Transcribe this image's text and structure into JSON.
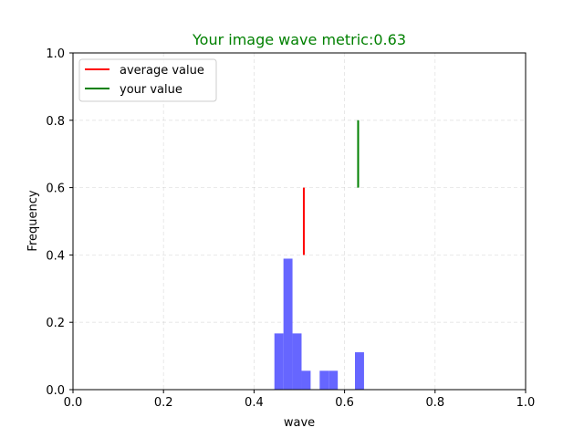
{
  "chart_data": {
    "type": "bar",
    "title": "Your image wave metric:0.63",
    "title_color": "#008000",
    "xlabel": "wave",
    "ylabel": "Frequency",
    "xlim": [
      0.0,
      1.0
    ],
    "ylim": [
      0.0,
      1.0
    ],
    "x_ticks": [
      0.0,
      0.2,
      0.4,
      0.6,
      0.8,
      1.0
    ],
    "y_ticks": [
      0.0,
      0.2,
      0.4,
      0.6,
      0.8,
      1.0
    ],
    "x_tick_labels": [
      "0.0",
      "0.2",
      "0.4",
      "0.6",
      "0.8",
      "1.0"
    ],
    "y_tick_labels": [
      "0.0",
      "0.2",
      "0.4",
      "0.6",
      "0.8",
      "1.0"
    ],
    "grid": true,
    "legend_position": "top-left",
    "histogram": {
      "color": "#6666ff",
      "bins": [
        {
          "x0": 0.445,
          "x1": 0.465,
          "value": 0.167
        },
        {
          "x0": 0.465,
          "x1": 0.485,
          "value": 0.389
        },
        {
          "x0": 0.485,
          "x1": 0.505,
          "value": 0.167
        },
        {
          "x0": 0.505,
          "x1": 0.525,
          "value": 0.056
        },
        {
          "x0": 0.545,
          "x1": 0.565,
          "value": 0.056
        },
        {
          "x0": 0.565,
          "x1": 0.585,
          "value": 0.056
        },
        {
          "x0": 0.623,
          "x1": 0.643,
          "value": 0.111
        }
      ]
    },
    "series": [
      {
        "name": "average value",
        "color": "#ff0000",
        "x": 0.51,
        "y_range": [
          0.4,
          0.6
        ]
      },
      {
        "name": "your value",
        "color": "#008000",
        "x": 0.63,
        "y_range": [
          0.6,
          0.8
        ]
      }
    ]
  }
}
